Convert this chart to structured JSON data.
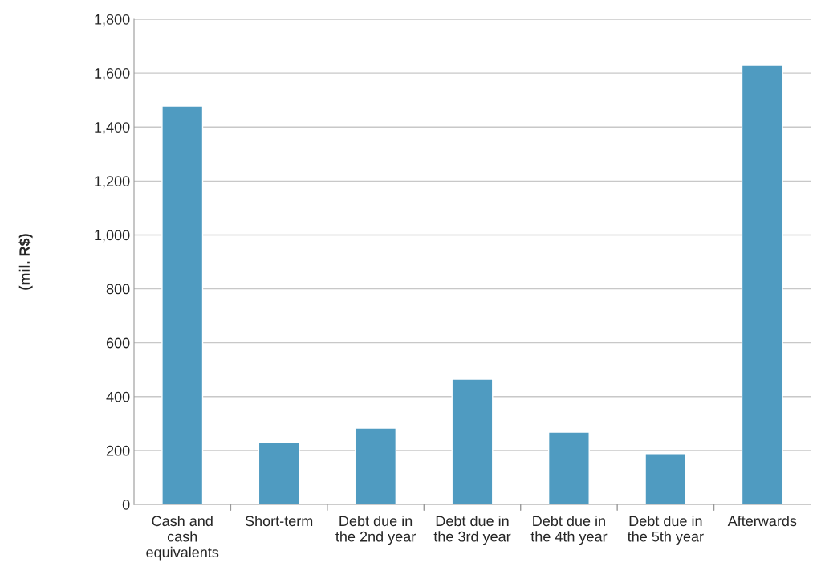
{
  "chart_data": {
    "type": "bar",
    "ylabel": "(mil. R$)",
    "categories": [
      "Cash and cash equivalents",
      "Short-term",
      "Debt due in the 2nd year",
      "Debt due in the 3rd year",
      "Debt due in the 4th year",
      "Debt due in the 5th year",
      "Afterwards"
    ],
    "values": [
      1478,
      229,
      283,
      465,
      268,
      188,
      1630
    ],
    "color": "#4f9bc1",
    "ylim": [
      0,
      1800
    ],
    "yticks": [
      {
        "value": 0,
        "label": "0"
      },
      {
        "value": 200,
        "label": "200"
      },
      {
        "value": 400,
        "label": "400"
      },
      {
        "value": 600,
        "label": "600"
      },
      {
        "value": 800,
        "label": "800"
      },
      {
        "value": 1000,
        "label": "1,000"
      },
      {
        "value": 1200,
        "label": "1,200"
      },
      {
        "value": 1400,
        "label": "1,400"
      },
      {
        "value": 1600,
        "label": "1,600"
      },
      {
        "value": 1800,
        "label": "1,800"
      }
    ],
    "grid": "y"
  }
}
